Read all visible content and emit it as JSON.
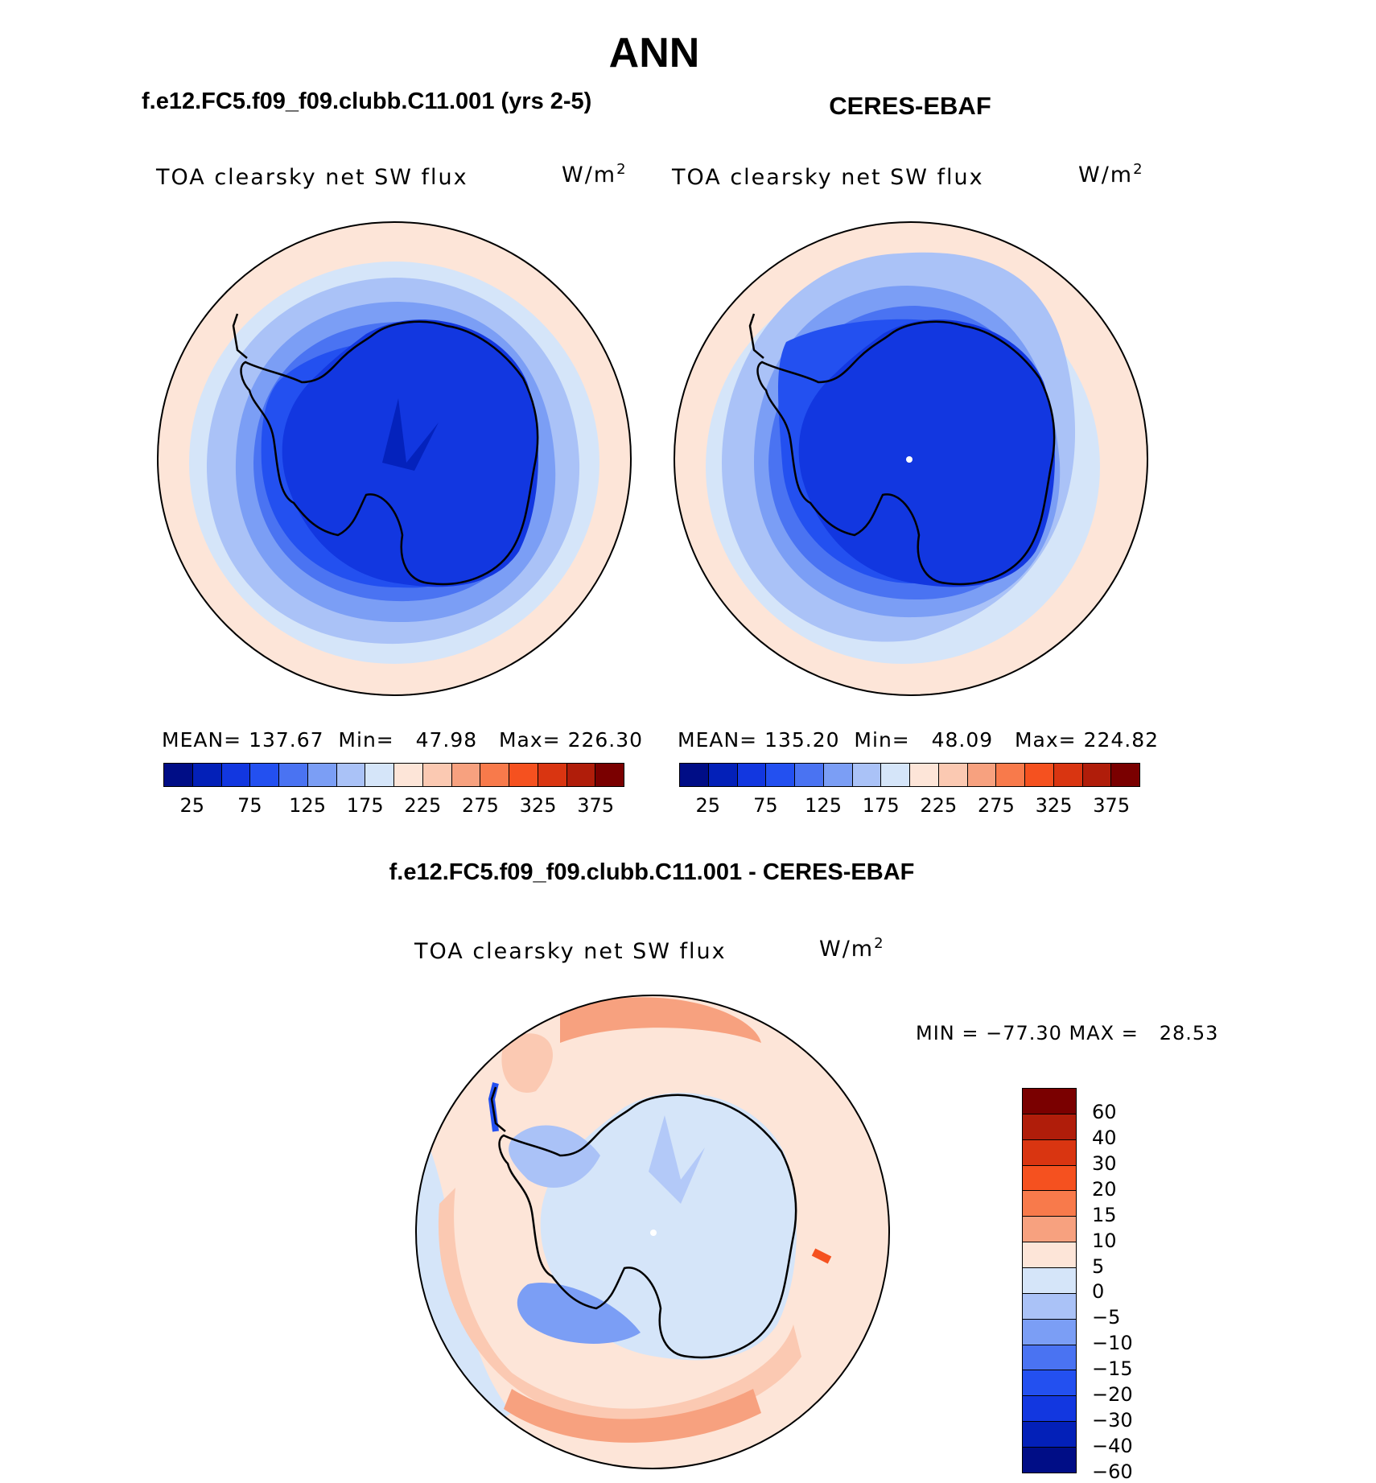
{
  "title": "ANN",
  "panel_left": {
    "case_title": "f.e12.FC5.f09_f09.clubb.C11.001 (yrs 2-5)",
    "variable": "TOA clearsky net SW flux",
    "units_base": "W/m",
    "units_exp": "2",
    "stats": "MEAN= 137.67  Min=   47.98   Max= 226.30"
  },
  "panel_right": {
    "case_title": "CERES-EBAF",
    "variable": "TOA clearsky net SW flux",
    "units_base": "W/m",
    "units_exp": "2",
    "stats": "MEAN= 135.20  Min=   48.09   Max= 224.82"
  },
  "panel_diff": {
    "case_title": "f.e12.FC5.f09_f09.clubb.C11.001 - CERES-EBAF",
    "variable": "TOA clearsky net SW flux",
    "units_base": "W/m",
    "units_exp": "2",
    "minmax": "MIN = −77.30 MAX =   28.53"
  },
  "abs_colorbar": {
    "colors": [
      "#000d86",
      "#0320b8",
      "#1237e0",
      "#2350f0",
      "#4a73f2",
      "#7b9ef5",
      "#aac2f7",
      "#d5e5f9",
      "#fde5d8",
      "#fbc9b2",
      "#f7a17f",
      "#f87a4b",
      "#f5511f",
      "#d93511",
      "#b01d0a",
      "#7a0000"
    ],
    "labels": [
      "25",
      "75",
      "125",
      "175",
      "225",
      "275",
      "325",
      "375"
    ]
  },
  "diff_colorbar": {
    "colors": [
      "#7a0000",
      "#b01d0a",
      "#d93511",
      "#f5511f",
      "#f87a4b",
      "#f7a17f",
      "#fde5d8",
      "#d5e5f9",
      "#aac2f7",
      "#7b9ef5",
      "#4a73f2",
      "#2350f0",
      "#1237e0",
      "#0320b8",
      "#000d86"
    ],
    "labels": [
      "60",
      "40",
      "30",
      "20",
      "15",
      "10",
      "5",
      "0",
      "−5",
      "−10",
      "−15",
      "−20",
      "−30",
      "−40",
      "−60"
    ]
  }
}
